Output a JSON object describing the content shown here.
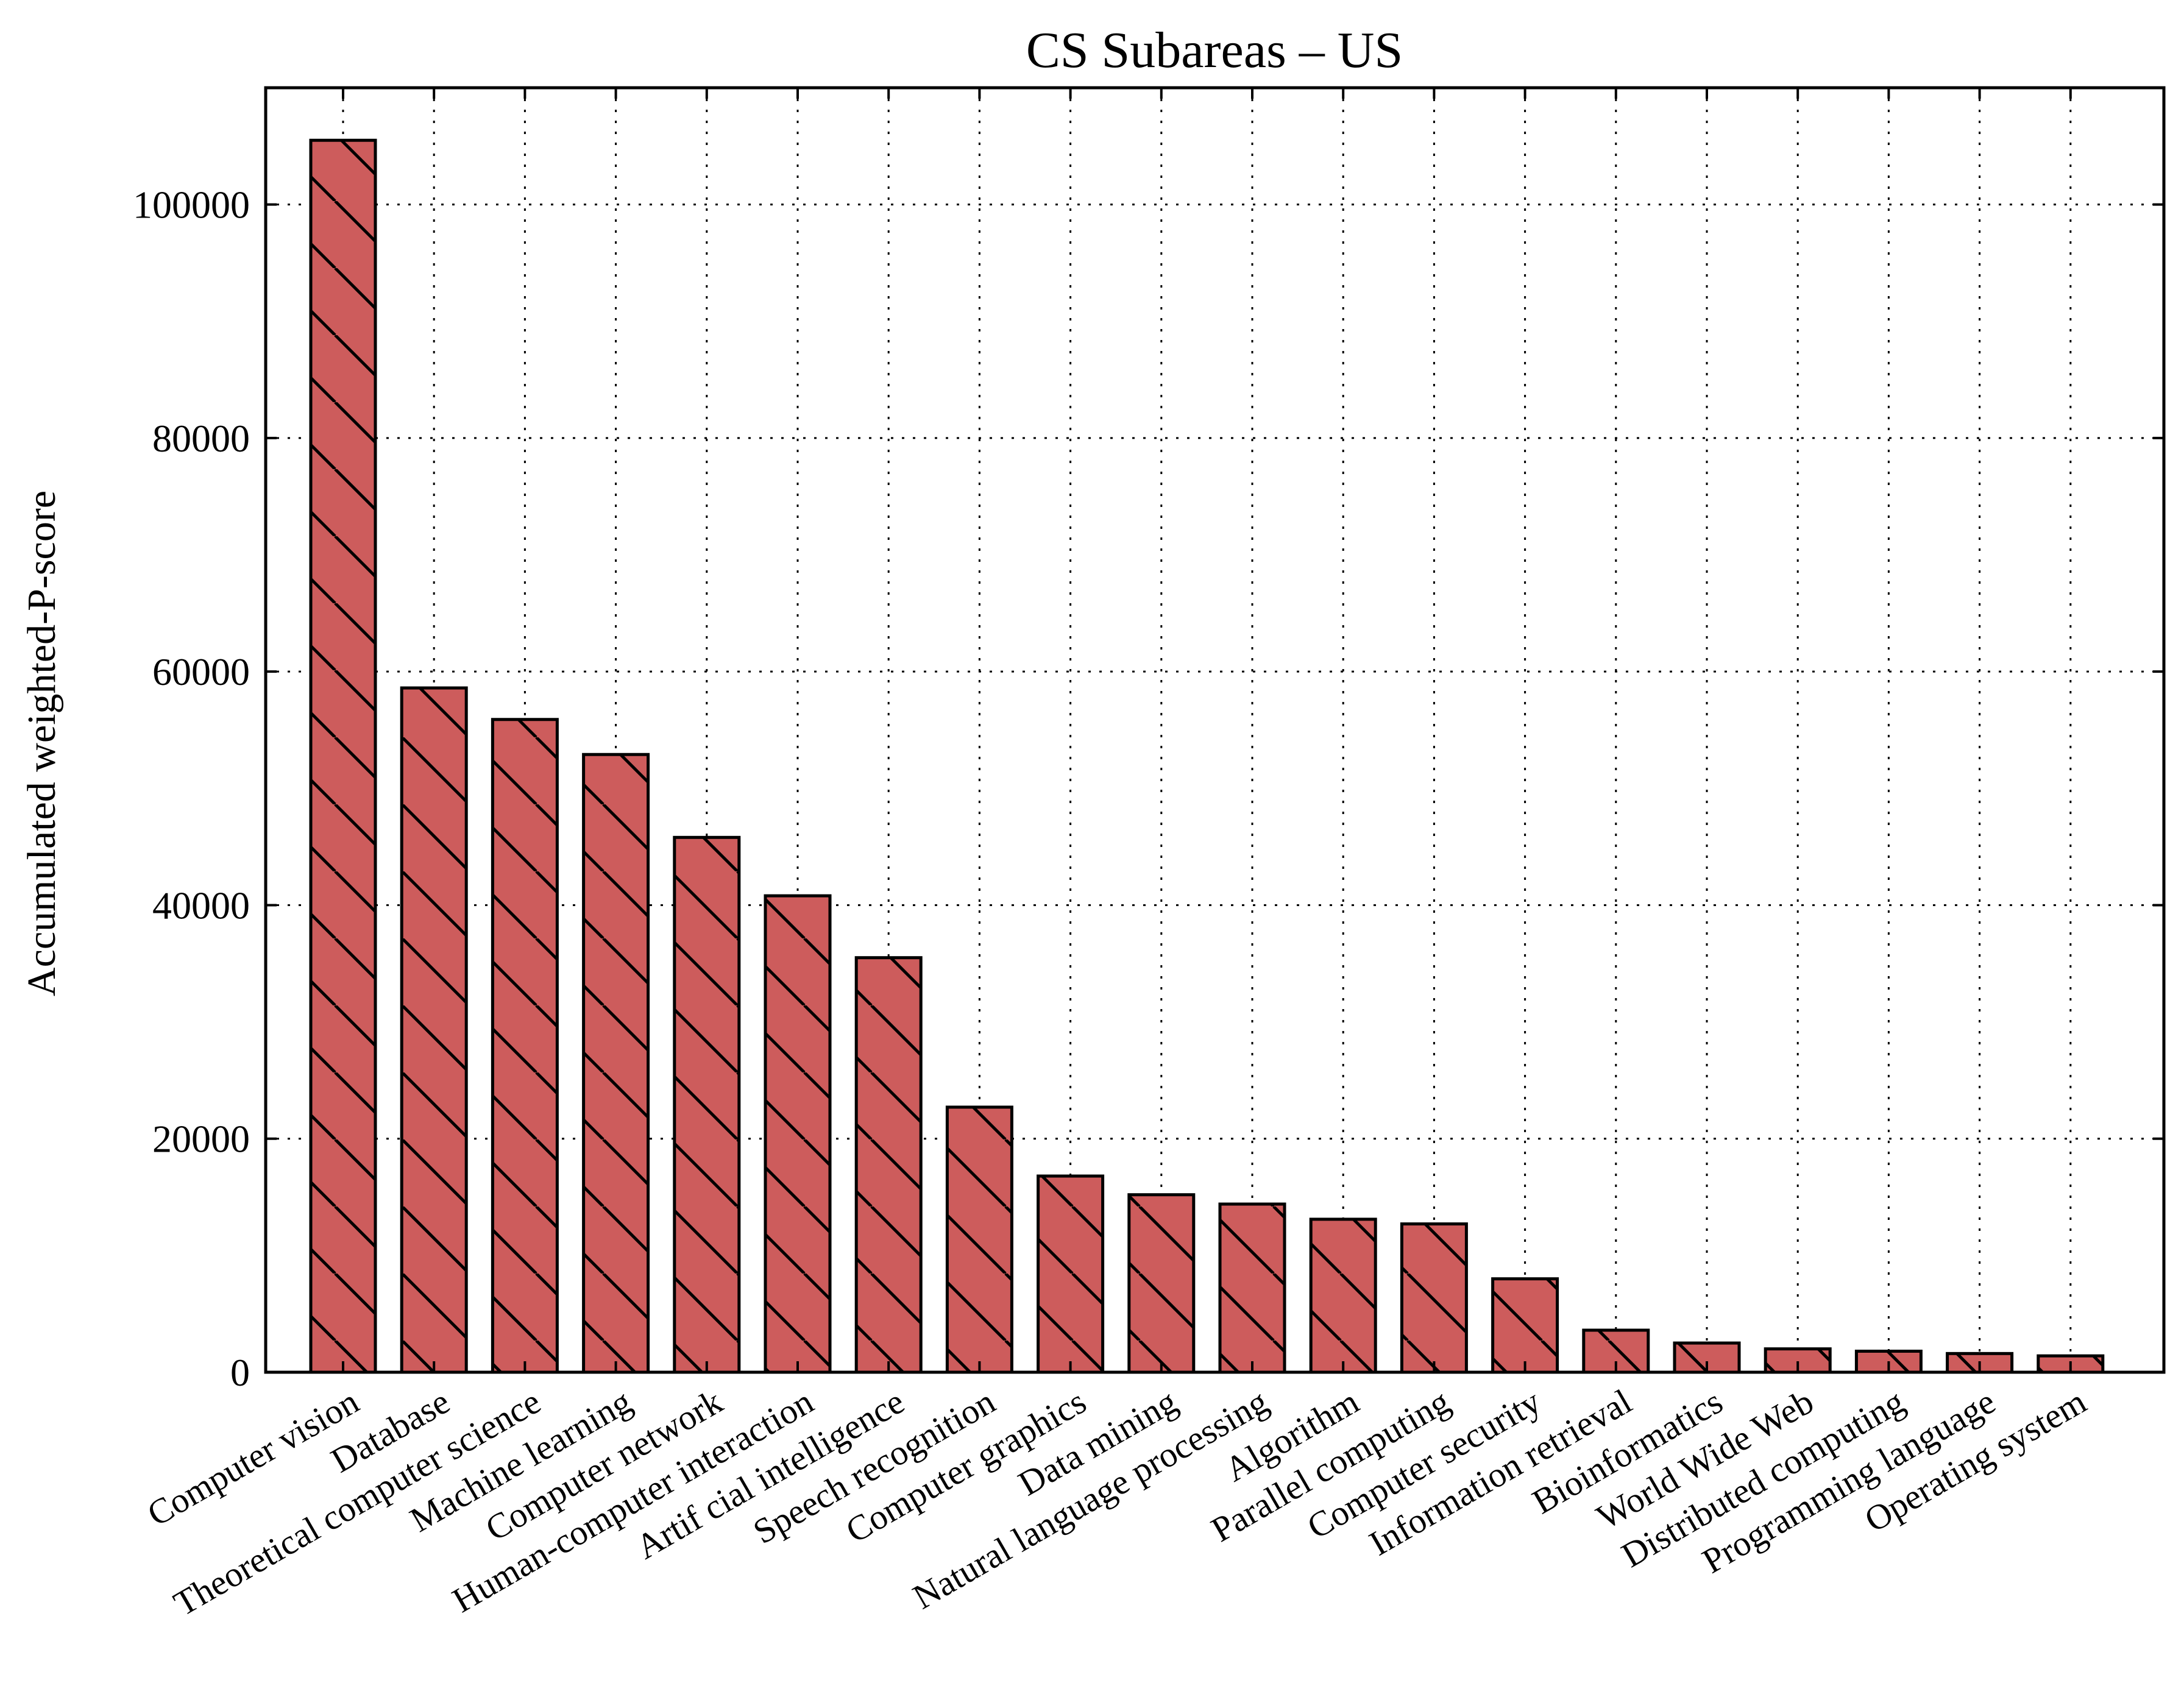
{
  "chart_data": {
    "type": "bar",
    "title": "CS Subareas – US",
    "xlabel": "",
    "ylabel": "Accumulated weighted-P-score",
    "categories": [
      "Computer vision",
      "Database",
      "Theoretical computer science",
      "Machine learning",
      "Computer network",
      "Human-computer interaction",
      "Artif cial intelligence",
      "Speech recognition",
      "Computer graphics",
      "Data mining",
      "Natural language processing",
      "Algorithm",
      "Parallel computing",
      "Computer security",
      "Information retrieval",
      "Bioinformatics",
      "World Wide Web",
      "Distributed computing",
      "Programming language",
      "Operating system"
    ],
    "values": [
      105500,
      58600,
      55900,
      52900,
      45800,
      40800,
      35500,
      22700,
      16800,
      15200,
      14400,
      13100,
      12700,
      8000,
      3600,
      2500,
      2000,
      1800,
      1600,
      1400
    ],
    "yticks": [
      0,
      20000,
      40000,
      60000,
      80000,
      100000
    ],
    "ylim": [
      0,
      110000
    ],
    "grid": true,
    "bar_color": "#cd5c5c",
    "hatch": "\\"
  }
}
